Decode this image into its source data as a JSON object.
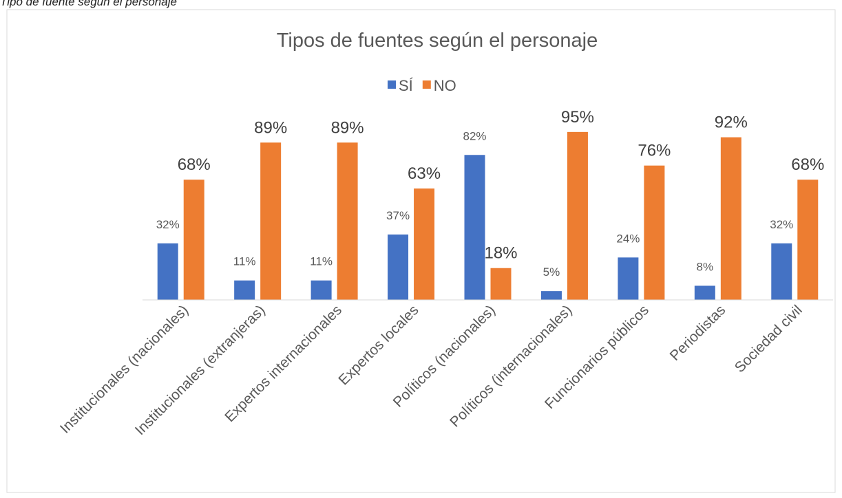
{
  "caption": "Tipo de fuente según el personaje",
  "chart_data": {
    "type": "bar",
    "title": "Tipos de fuentes según el personaje",
    "categories": [
      "Institucionales (nacionales)",
      "Institucionales (extranjeras)",
      "Expertos internacionales",
      "Expertos locales",
      "Políticos (nacionales)",
      "Políticos (internacionales)",
      "Funcionarios públicos",
      "Periodistas",
      "Sociedad civil"
    ],
    "series": [
      {
        "name": "SÍ",
        "color": "#4472c4",
        "values": [
          32,
          11,
          11,
          37,
          82,
          5,
          24,
          8,
          32
        ],
        "value_labels": [
          "32%",
          "11%",
          "11%",
          "37%",
          "82%",
          "5%",
          "24%",
          "8%",
          "32%"
        ]
      },
      {
        "name": "NO",
        "color": "#ed7d31",
        "values": [
          68,
          89,
          89,
          63,
          18,
          95,
          76,
          92,
          68
        ],
        "value_labels": [
          "68%",
          "89%",
          "89%",
          "63%",
          "18%",
          "95%",
          "76%",
          "92%",
          "68%"
        ]
      }
    ],
    "ylim": [
      0,
      100
    ],
    "legend": "top"
  }
}
